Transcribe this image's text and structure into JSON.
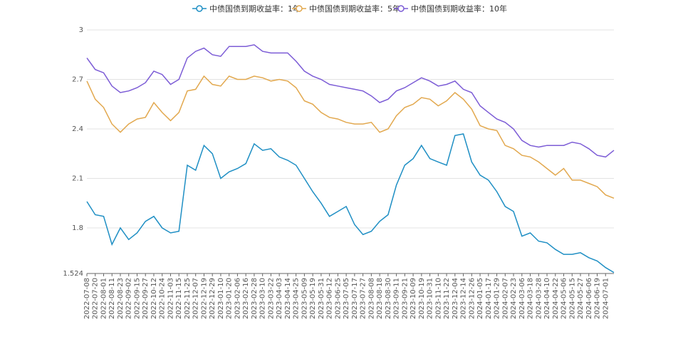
{
  "chart_data": {
    "type": "line",
    "categories": [
      "2022-07-08",
      "2022-07-20",
      "2022-08-01",
      "2022-08-11",
      "2022-08-23",
      "2022-09-02",
      "2022-09-15",
      "2022-09-27",
      "2022-10-12",
      "2022-10-24",
      "2022-11-03",
      "2022-11-15",
      "2022-11-25",
      "2022-12-07",
      "2022-12-19",
      "2022-12-29",
      "2023-01-10",
      "2023-01-20",
      "2023-02-06",
      "2023-02-16",
      "2023-02-28",
      "2023-03-10",
      "2023-03-22",
      "2023-04-03",
      "2023-04-14",
      "2023-04-25",
      "2023-05-09",
      "2023-05-19",
      "2023-05-31",
      "2023-06-12",
      "2023-06-25",
      "2023-07-05",
      "2023-07-17",
      "2023-07-27",
      "2023-08-08",
      "2023-08-18",
      "2023-08-30",
      "2023-09-11",
      "2023-09-21",
      "2023-10-09",
      "2023-10-19",
      "2023-10-31",
      "2023-11-10",
      "2023-11-22",
      "2023-12-04",
      "2023-12-14",
      "2023-12-26",
      "2024-01-05",
      "2024-01-17",
      "2024-01-29",
      "2024-02-07",
      "2024-02-23",
      "2024-03-06",
      "2024-03-18",
      "2024-03-28",
      "2024-04-10",
      "2024-04-22",
      "2024-05-06",
      "2024-05-15",
      "2024-05-27",
      "2024-06-06",
      "2024-06-19",
      "2024-07-01",
      null
    ],
    "series": [
      {
        "name": "中债国债到期收益率：1年",
        "color": "#1f8fc4",
        "values": [
          1.96,
          1.88,
          1.87,
          1.7,
          1.8,
          1.73,
          1.77,
          1.84,
          1.87,
          1.8,
          1.77,
          1.78,
          2.18,
          2.15,
          2.3,
          2.25,
          2.1,
          2.14,
          2.16,
          2.19,
          2.31,
          2.27,
          2.28,
          2.23,
          2.21,
          2.18,
          2.1,
          2.02,
          1.95,
          1.87,
          1.9,
          1.93,
          1.82,
          1.76,
          1.78,
          1.84,
          1.88,
          2.06,
          2.18,
          2.22,
          2.3,
          2.22,
          2.2,
          2.18,
          2.36,
          2.37,
          2.2,
          2.12,
          2.09,
          2.02,
          1.93,
          1.9,
          1.75,
          1.77,
          1.72,
          1.71,
          1.67,
          1.64,
          1.64,
          1.65,
          1.62,
          1.6,
          1.56,
          1.53
        ]
      },
      {
        "name": "中债国债到期收益率：5年",
        "color": "#e2a84e",
        "values": [
          2.69,
          2.58,
          2.53,
          2.43,
          2.38,
          2.43,
          2.46,
          2.47,
          2.56,
          2.5,
          2.45,
          2.5,
          2.63,
          2.64,
          2.72,
          2.67,
          2.66,
          2.72,
          2.7,
          2.7,
          2.72,
          2.71,
          2.69,
          2.7,
          2.69,
          2.65,
          2.57,
          2.55,
          2.5,
          2.47,
          2.46,
          2.44,
          2.43,
          2.43,
          2.44,
          2.38,
          2.4,
          2.48,
          2.53,
          2.55,
          2.59,
          2.58,
          2.54,
          2.57,
          2.62,
          2.58,
          2.52,
          2.42,
          2.4,
          2.39,
          2.3,
          2.28,
          2.24,
          2.23,
          2.2,
          2.16,
          2.12,
          2.16,
          2.09,
          2.09,
          2.07,
          2.05,
          2.0,
          1.98
        ]
      },
      {
        "name": "中债国债到期收益率：10年",
        "color": "#7c5cd6",
        "values": [
          2.83,
          2.76,
          2.74,
          2.66,
          2.62,
          2.63,
          2.65,
          2.68,
          2.75,
          2.73,
          2.67,
          2.7,
          2.83,
          2.87,
          2.89,
          2.85,
          2.84,
          2.9,
          2.9,
          2.9,
          2.91,
          2.87,
          2.86,
          2.86,
          2.86,
          2.81,
          2.75,
          2.72,
          2.7,
          2.67,
          2.66,
          2.65,
          2.64,
          2.63,
          2.6,
          2.56,
          2.58,
          2.63,
          2.65,
          2.68,
          2.71,
          2.69,
          2.66,
          2.67,
          2.69,
          2.64,
          2.62,
          2.54,
          2.5,
          2.46,
          2.44,
          2.4,
          2.33,
          2.3,
          2.29,
          2.3,
          2.3,
          2.3,
          2.32,
          2.31,
          2.28,
          2.24,
          2.23,
          2.27
        ]
      }
    ],
    "ylim": [
      1.524,
      3
    ],
    "yticks": [
      1.524,
      1.8,
      2.1,
      2.4,
      2.7,
      3
    ],
    "grid": true
  }
}
